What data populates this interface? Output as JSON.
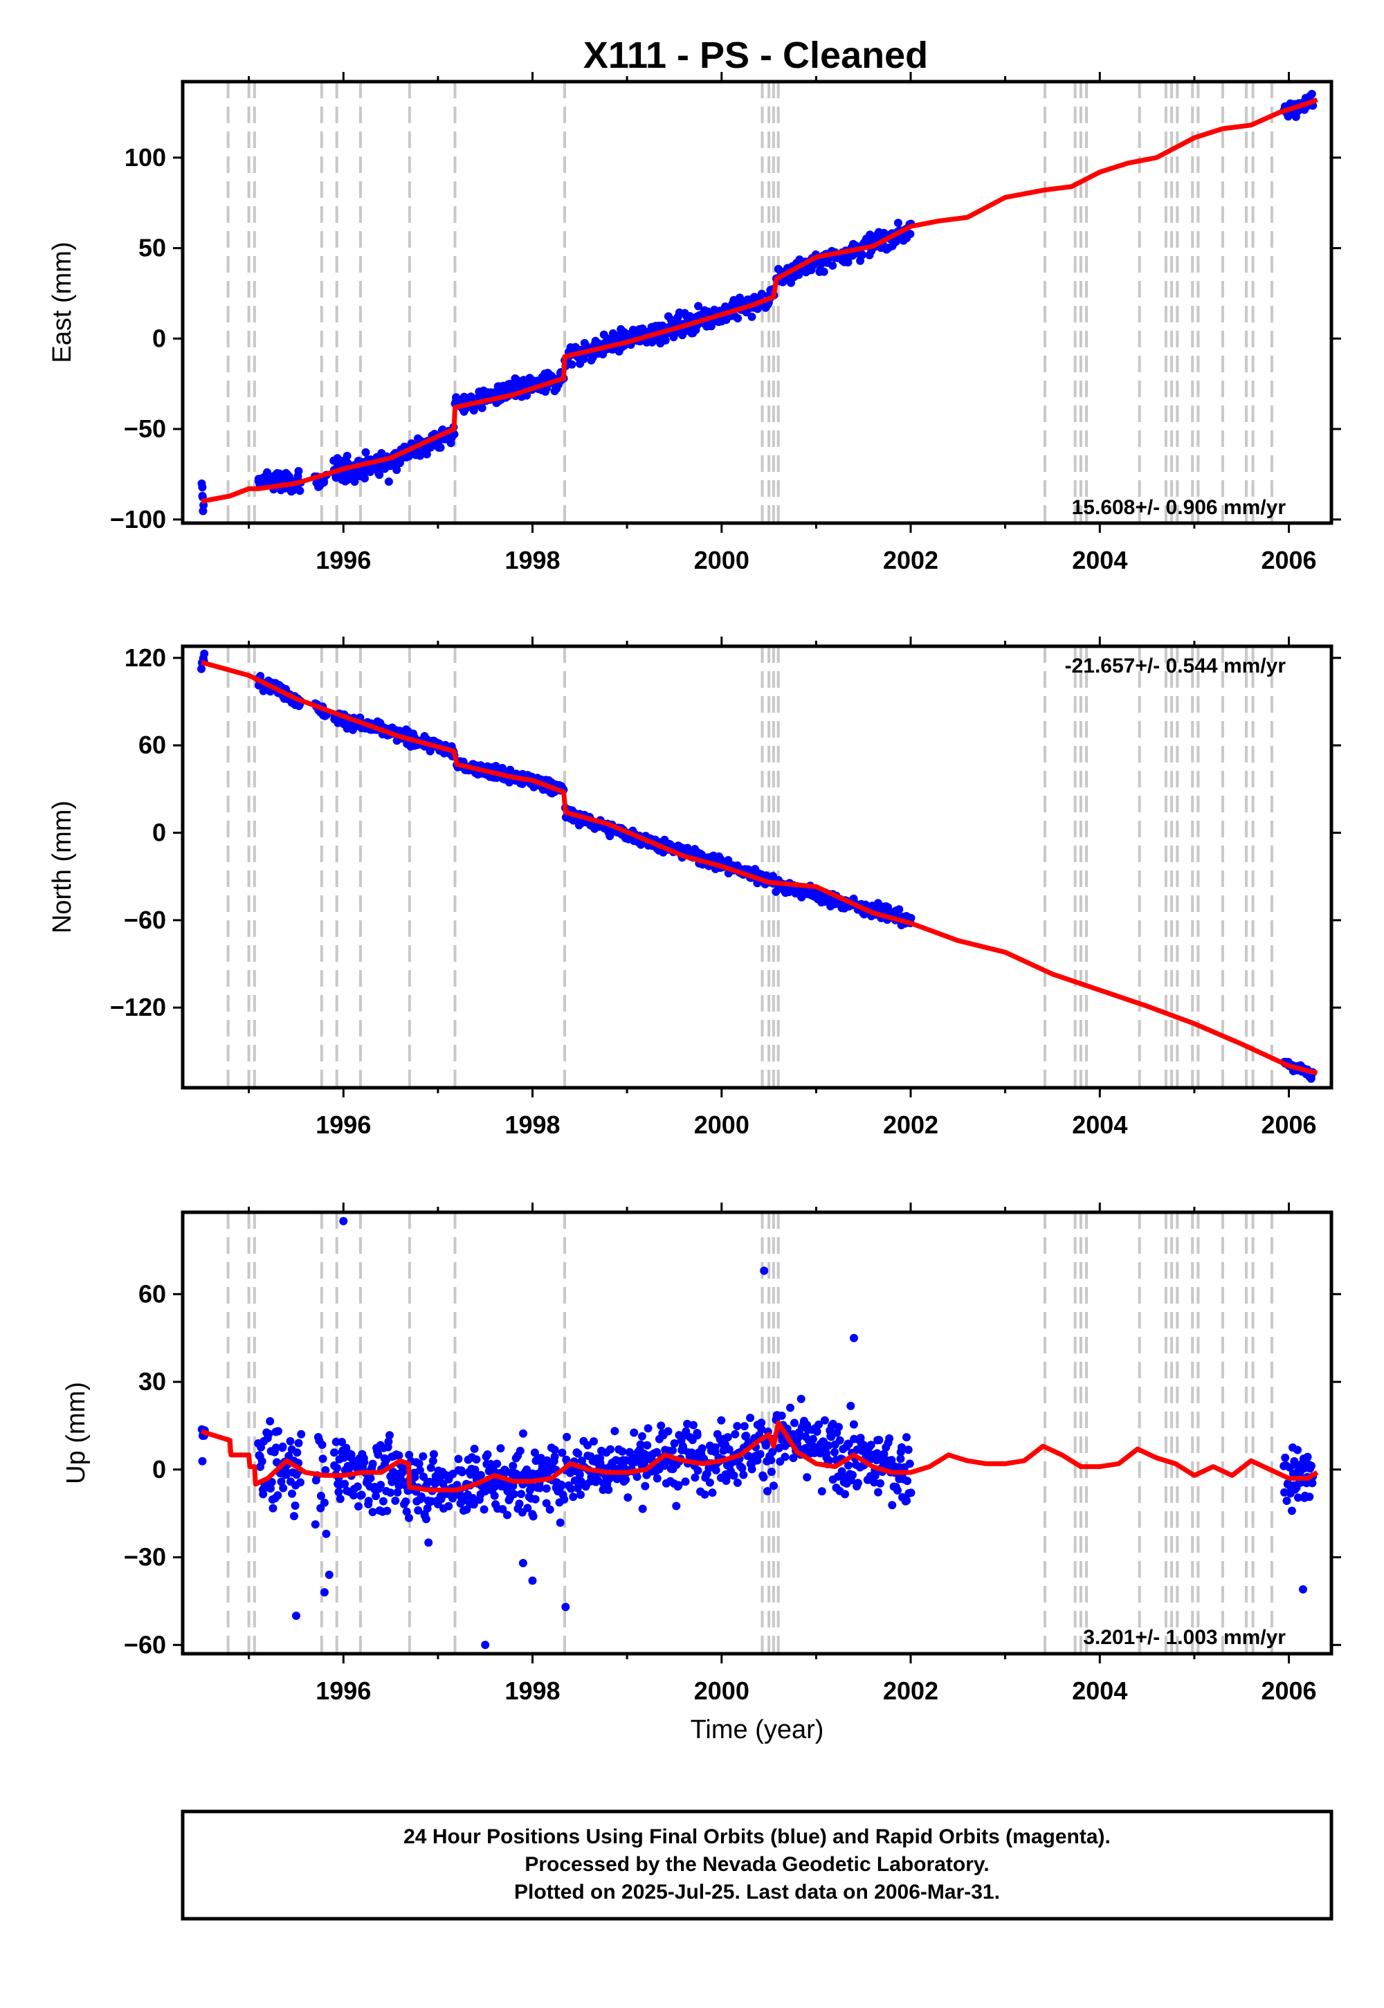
{
  "title": "X111  - PS - Cleaned",
  "colors": {
    "final_orbits": "#0000ff",
    "rapid_orbits": "#ff00ff",
    "model": "#ff0000",
    "event_lines": "#c8c8c8",
    "frame": "#000000"
  },
  "xaxis": {
    "label": "Time (year)",
    "range": [
      1994.3,
      2006.45
    ],
    "ticks": [
      1996,
      1998,
      2000,
      2002,
      2004,
      2006
    ],
    "tick_labels": [
      "1996",
      "1998",
      "2000",
      "2002",
      "2004",
      "2006"
    ]
  },
  "event_lines": [
    1994.78,
    1995.0,
    1995.06,
    1995.77,
    1995.93,
    1996.18,
    1996.7,
    1997.18,
    1998.34,
    2000.43,
    2000.5,
    2000.55,
    2000.6,
    2003.42,
    2003.74,
    2003.8,
    2003.86,
    2004.42,
    2004.7,
    2004.76,
    2004.82,
    2004.98,
    2005.04,
    2005.3,
    2005.55,
    2005.62,
    2005.82
  ],
  "chart_data": [
    {
      "type": "scatter",
      "panel": "east",
      "ylabel": "East (mm)",
      "ylim": [
        -102,
        142
      ],
      "yticks": [
        100,
        50,
        0,
        -50,
        -100
      ],
      "ytick_labels": [
        "100",
        "50",
        "0",
        "−50",
        "−100"
      ],
      "rate_text": "15.608+/- 0.906 mm/yr",
      "rate_position": "bottom-right",
      "grid": false,
      "model": {
        "name": "",
        "x": [
          1994.5,
          1994.8,
          1995.0,
          1995.1,
          1995.5,
          1996.0,
          1996.5,
          1997.17,
          1997.18,
          1997.8,
          1998.33,
          1998.34,
          1999.0,
          1999.6,
          2000.3,
          2000.55,
          2000.58,
          2001.0,
          2001.6,
          2002.0,
          2002.3,
          2002.6,
          2003.0,
          2003.4,
          2003.7,
          2004.0,
          2004.3,
          2004.6,
          2005.0,
          2005.3,
          2005.6,
          2005.9,
          2006.2,
          2006.3
        ],
        "y": [
          -90,
          -87,
          -83,
          -83,
          -80,
          -72,
          -66,
          -50,
          -38,
          -31,
          -22,
          -10,
          -2,
          7,
          18,
          23,
          33,
          45,
          51,
          62,
          65,
          67,
          78,
          82,
          84,
          92,
          97,
          100,
          111,
          116,
          118,
          125,
          130,
          132
        ]
      },
      "segments": [
        {
          "x0": 1994.5,
          "x1": 1994.52,
          "trend": [
            -82,
            -95
          ],
          "scatter": 4,
          "n": 6
        },
        {
          "x0": 1995.1,
          "x1": 1995.55,
          "trend": [
            -78,
            -80
          ],
          "scatter": 4,
          "n": 60
        },
        {
          "x0": 1995.7,
          "x1": 1995.82,
          "trend": [
            -79,
            -77
          ],
          "scatter": 4,
          "n": 12
        },
        {
          "x0": 1995.9,
          "x1": 1996.5,
          "trend": [
            -74,
            -68
          ],
          "scatter": 5,
          "n": 90
        },
        {
          "x0": 1996.5,
          "x1": 1997.17,
          "trend": [
            -67,
            -52
          ],
          "scatter": 4,
          "n": 90
        },
        {
          "x0": 1997.18,
          "x1": 1998.33,
          "trend": [
            -37,
            -22
          ],
          "scatter": 4,
          "n": 160
        },
        {
          "x0": 1998.34,
          "x1": 2000.55,
          "trend": [
            -10,
            22
          ],
          "scatter": 4,
          "n": 280
        },
        {
          "x0": 2000.58,
          "x1": 2002.0,
          "trend": [
            34,
            60
          ],
          "scatter": 4,
          "n": 180
        },
        {
          "x0": 2005.95,
          "x1": 2006.25,
          "trend": [
            125,
            132
          ],
          "scatter": 3,
          "n": 45
        }
      ]
    },
    {
      "type": "scatter",
      "panel": "north",
      "ylabel": "North (mm)",
      "ylim": [
        -175,
        128
      ],
      "yticks": [
        120,
        60,
        0,
        -60,
        -120
      ],
      "ytick_labels": [
        "120",
        "60",
        "0",
        "−60",
        "−120"
      ],
      "rate_text": "-21.657+/- 0.544 mm/yr",
      "rate_position": "top-right",
      "grid": false,
      "model": {
        "name": "",
        "x": [
          1994.5,
          1995.0,
          1995.5,
          1996.0,
          1996.6,
          1997.17,
          1997.2,
          1997.8,
          1998.0,
          1998.33,
          1998.35,
          1998.8,
          1999.2,
          1999.6,
          2000.0,
          2000.5,
          2001.0,
          2001.6,
          2002.0,
          2002.5,
          2003.0,
          2003.5,
          2004.0,
          2004.5,
          2005.0,
          2005.5,
          2006.0,
          2006.3
        ],
        "y": [
          117,
          108,
          92,
          80,
          66,
          56,
          47,
          38,
          36,
          28,
          14,
          6,
          -5,
          -16,
          -23,
          -34,
          -37,
          -55,
          -62,
          -74,
          -82,
          -97,
          -108,
          -119,
          -131,
          -145,
          -160,
          -165
        ]
      },
      "segments": [
        {
          "x0": 1994.5,
          "x1": 1994.53,
          "trend": [
            114,
            122
          ],
          "scatter": 3,
          "n": 6
        },
        {
          "x0": 1995.1,
          "x1": 1995.55,
          "trend": [
            106,
            90
          ],
          "scatter": 3,
          "n": 60
        },
        {
          "x0": 1995.7,
          "x1": 1995.82,
          "trend": [
            86,
            82
          ],
          "scatter": 3,
          "n": 12
        },
        {
          "x0": 1995.9,
          "x1": 1997.17,
          "trend": [
            80,
            56
          ],
          "scatter": 3,
          "n": 170
        },
        {
          "x0": 1997.2,
          "x1": 1998.33,
          "trend": [
            47,
            30
          ],
          "scatter": 3,
          "n": 160
        },
        {
          "x0": 1998.35,
          "x1": 2000.55,
          "trend": [
            13,
            -33
          ],
          "scatter": 3,
          "n": 280
        },
        {
          "x0": 2000.58,
          "x1": 2002.0,
          "trend": [
            -35,
            -60
          ],
          "scatter": 3,
          "n": 180
        },
        {
          "x0": 2005.95,
          "x1": 2006.25,
          "trend": [
            -158,
            -166
          ],
          "scatter": 2,
          "n": 45
        }
      ]
    },
    {
      "type": "scatter",
      "panel": "up",
      "ylabel": "Up (mm)",
      "ylim": [
        -63,
        88
      ],
      "yticks": [
        60,
        30,
        0,
        -30,
        -60
      ],
      "ytick_labels": [
        "60",
        "30",
        "0",
        "−30",
        "−60"
      ],
      "rate_text": "3.201+/- 1.003 mm/yr",
      "rate_position": "bottom-right",
      "grid": false,
      "model": {
        "name": "",
        "x": [
          1994.5,
          1994.8,
          1994.81,
          1995.0,
          1995.01,
          1995.06,
          1995.07,
          1995.2,
          1995.4,
          1995.6,
          1995.8,
          1996.0,
          1996.2,
          1996.4,
          1996.6,
          1996.69,
          1996.7,
          1996.9,
          1997.2,
          1997.4,
          1997.6,
          1997.8,
          1998.0,
          1998.2,
          1998.4,
          1998.6,
          1998.8,
          1999.0,
          1999.2,
          1999.4,
          1999.6,
          1999.8,
          2000.0,
          2000.2,
          2000.4,
          2000.5,
          2000.55,
          2000.6,
          2000.8,
          2001.0,
          2001.2,
          2001.4,
          2001.6,
          2001.8,
          2002.0,
          2002.2,
          2002.4,
          2002.6,
          2002.8,
          2003.0,
          2003.2,
          2003.4,
          2003.6,
          2003.8,
          2004.0,
          2004.2,
          2004.4,
          2004.6,
          2004.8,
          2005.0,
          2005.2,
          2005.4,
          2005.6,
          2005.8,
          2006.0,
          2006.2,
          2006.3
        ],
        "y": [
          13,
          10,
          5,
          5,
          1,
          1,
          -5,
          -3,
          3,
          -1,
          -2,
          -2,
          -1,
          -1,
          3,
          2,
          -6,
          -7,
          -7,
          -5,
          -2,
          -4,
          -4,
          -3,
          2,
          0,
          -1,
          -1,
          0,
          5,
          3,
          2,
          3,
          5,
          10,
          12,
          8,
          16,
          6,
          2,
          1,
          5,
          1,
          -1,
          -1,
          1,
          5,
          3,
          2,
          2,
          3,
          8,
          5,
          1,
          1,
          2,
          7,
          4,
          2,
          -2,
          1,
          -2,
          3,
          0,
          -3,
          -3,
          -1
        ]
      },
      "segments": [
        {
          "x0": 1994.5,
          "x1": 1994.53,
          "trend": [
            12,
            12
          ],
          "scatter": 6,
          "n": 6
        },
        {
          "x0": 1995.1,
          "x1": 1995.55,
          "trend": [
            0,
            1
          ],
          "scatter": 11,
          "n": 60
        },
        {
          "x0": 1995.7,
          "x1": 1995.82,
          "trend": [
            -2,
            -2
          ],
          "scatter": 12,
          "n": 12
        },
        {
          "x0": 1995.9,
          "x1": 1997.17,
          "trend": [
            0,
            -6
          ],
          "scatter": 8,
          "n": 170
        },
        {
          "x0": 1997.2,
          "x1": 1998.33,
          "trend": [
            -5,
            -3
          ],
          "scatter": 8,
          "n": 160
        },
        {
          "x0": 1998.35,
          "x1": 2000.55,
          "trend": [
            0,
            8
          ],
          "scatter": 8,
          "n": 280
        },
        {
          "x0": 2000.58,
          "x1": 2002.0,
          "trend": [
            10,
            -1
          ],
          "scatter": 8,
          "n": 180
        },
        {
          "x0": 2005.95,
          "x1": 2006.25,
          "trend": [
            -2,
            -3
          ],
          "scatter": 7,
          "n": 45
        }
      ],
      "outliers": {
        "x": [
          1996.0,
          2000.45,
          2001.4,
          1995.5,
          1995.8,
          1995.85,
          1997.5,
          1996.9,
          1998.35,
          2006.15,
          1997.9,
          1998.0
        ],
        "y": [
          85,
          68,
          45,
          -50,
          -42,
          -36,
          -60,
          -25,
          -47,
          -41,
          -32,
          -38
        ]
      }
    }
  ],
  "footer": {
    "line1": "24 Hour Positions Using Final Orbits (blue) and Rapid Orbits (magenta).",
    "line2": "Processed by the Nevada Geodetic Laboratory.",
    "line3": "Plotted on 2025-Jul-25. Last data on 2006-Mar-31."
  }
}
